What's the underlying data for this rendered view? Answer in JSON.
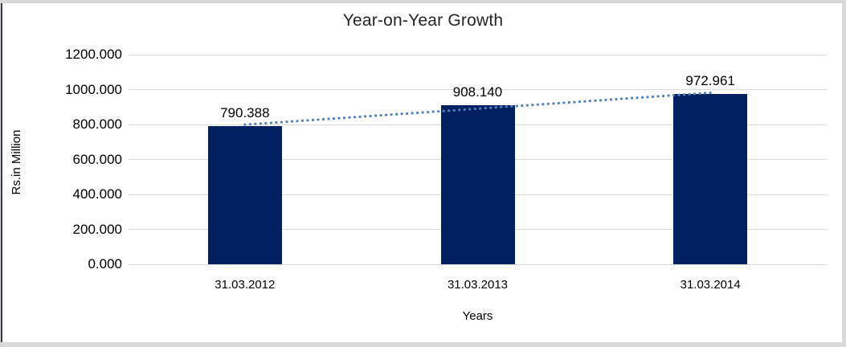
{
  "frame": {
    "outer_border_color": "#d9d9d9",
    "left_accent_color": "#3a3a4f",
    "background": "#ffffff"
  },
  "chart_data": {
    "type": "bar",
    "title": "Year-on-Year Growth",
    "categories": [
      "31.03.2012",
      "31.03.2013",
      "31.03.2014"
    ],
    "values": [
      790.388,
      908.14,
      972.961
    ],
    "data_labels": [
      "790.388",
      "908.140",
      "972.961"
    ],
    "xlabel": "Years",
    "ylabel": "Rs.in Million",
    "ylim": [
      0,
      1200
    ],
    "ytick_step": 200,
    "ytick_labels": [
      "0.000",
      "200.000",
      "400.000",
      "600.000",
      "800.000",
      "1000.000",
      "1200.000"
    ],
    "grid": true,
    "gridline_color": "#d9d9d9",
    "legend_position": "none",
    "bar_color": "#002060",
    "trendline": {
      "type": "linear",
      "style": "dotted",
      "color": "#4F81BD"
    }
  }
}
